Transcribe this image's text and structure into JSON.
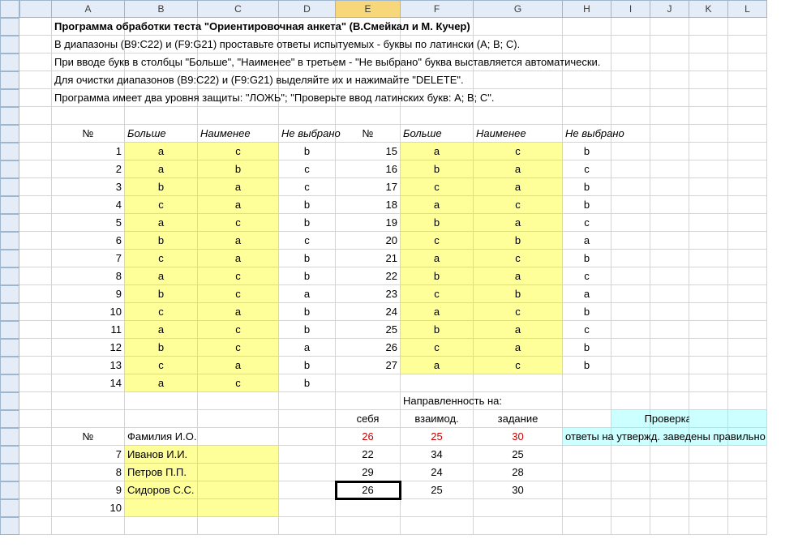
{
  "columns": [
    "A",
    "B",
    "C",
    "D",
    "E",
    "F",
    "G",
    "H",
    "I",
    "J",
    "K",
    "L"
  ],
  "title": "Программа обработки теста \"Ориентировочная анкета\" (В.Смейкал и М. Кучер)",
  "instructions": [
    "В диапазоны (B9:C22) и (F9:G21) проставьте ответы испытуемых - буквы по латински (A; B; C).",
    "При вводе букв в столбцы \"Больше\", \"Наименее\" в третьем - \"Не выбрано\" буква выставляется автоматически.",
    "Для очистки диапазонов (B9:C22) и (F9:G21) выделяйте их и нажимайте \"DELETE\".",
    "Программа имеет два уровня защиты: \"ЛОЖЬ\"; \"Проверьте ввод латинских букв: A; B; C\"."
  ],
  "hdr": {
    "num": "№",
    "more": "Больше",
    "least": "Наименее",
    "notsel": "Не выбрано"
  },
  "left": [
    {
      "n": "1",
      "b": "a",
      "c": "c",
      "d": "b"
    },
    {
      "n": "2",
      "b": "a",
      "c": "b",
      "d": "c"
    },
    {
      "n": "3",
      "b": "b",
      "c": "a",
      "d": "c"
    },
    {
      "n": "4",
      "b": "c",
      "c": "a",
      "d": "b"
    },
    {
      "n": "5",
      "b": "a",
      "c": "c",
      "d": "b"
    },
    {
      "n": "6",
      "b": "b",
      "c": "a",
      "d": "c"
    },
    {
      "n": "7",
      "b": "c",
      "c": "a",
      "d": "b"
    },
    {
      "n": "8",
      "b": "a",
      "c": "c",
      "d": "b"
    },
    {
      "n": "9",
      "b": "b",
      "c": "c",
      "d": "a"
    },
    {
      "n": "10",
      "b": "c",
      "c": "a",
      "d": "b"
    },
    {
      "n": "11",
      "b": "a",
      "c": "c",
      "d": "b"
    },
    {
      "n": "12",
      "b": "b",
      "c": "c",
      "d": "a"
    },
    {
      "n": "13",
      "b": "c",
      "c": "a",
      "d": "b"
    },
    {
      "n": "14",
      "b": "a",
      "c": "c",
      "d": "b"
    }
  ],
  "right": [
    {
      "n": "15",
      "b": "a",
      "c": "c",
      "d": "b"
    },
    {
      "n": "16",
      "b": "b",
      "c": "a",
      "d": "c"
    },
    {
      "n": "17",
      "b": "c",
      "c": "a",
      "d": "b"
    },
    {
      "n": "18",
      "b": "a",
      "c": "c",
      "d": "b"
    },
    {
      "n": "19",
      "b": "b",
      "c": "a",
      "d": "c"
    },
    {
      "n": "20",
      "b": "c",
      "c": "b",
      "d": "a"
    },
    {
      "n": "21",
      "b": "a",
      "c": "c",
      "d": "b"
    },
    {
      "n": "22",
      "b": "b",
      "c": "a",
      "d": "c"
    },
    {
      "n": "23",
      "b": "c",
      "c": "b",
      "d": "a"
    },
    {
      "n": "24",
      "b": "a",
      "c": "c",
      "d": "b"
    },
    {
      "n": "25",
      "b": "b",
      "c": "a",
      "d": "c"
    },
    {
      "n": "26",
      "b": "c",
      "c": "a",
      "d": "b"
    },
    {
      "n": "27",
      "b": "a",
      "c": "c",
      "d": "b"
    }
  ],
  "summary": {
    "headerLine": "Направленность на:",
    "cols": [
      "себя",
      "взаимод.",
      "задание"
    ],
    "numLabel": "№",
    "nameLabel": "Фамилия И.О.",
    "totals": [
      "26",
      "25",
      "30"
    ],
    "checkTitle": "Проверка:",
    "checkText": "ответы на утвержд. заведены правильно",
    "rows": [
      {
        "n": "7",
        "name": "Иванов И.И.",
        "v": [
          "22",
          "34",
          "25"
        ]
      },
      {
        "n": "8",
        "name": "Петров П.П.",
        "v": [
          "29",
          "24",
          "28"
        ]
      },
      {
        "n": "9",
        "name": "Сидоров С.С.",
        "v": [
          "26",
          "25",
          "30"
        ]
      },
      {
        "n": "10",
        "name": "",
        "v": [
          "",
          "",
          ""
        ]
      }
    ]
  },
  "selectedColumn": "E",
  "selectedCell": {
    "row": 27,
    "col": 5
  }
}
